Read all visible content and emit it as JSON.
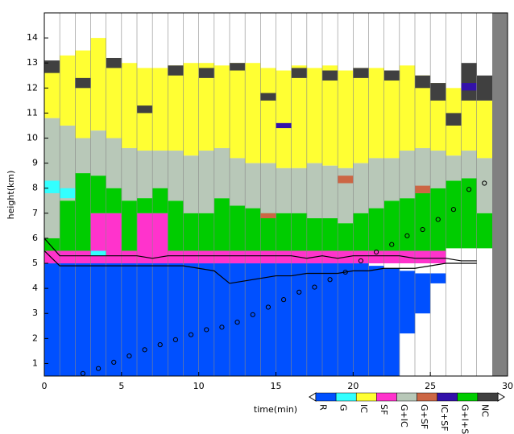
{
  "chart_data": {
    "type": "range",
    "xlabel": "time(min)",
    "ylabel": "height(km)",
    "xlim": [
      0,
      30
    ],
    "xticks": [
      0,
      5,
      10,
      15,
      20,
      25,
      30
    ],
    "ylim": [
      0.5,
      15
    ],
    "yticks": [
      1,
      2,
      3,
      4,
      5,
      6,
      7,
      8,
      9,
      10,
      11,
      12,
      13,
      14
    ],
    "x": [
      0,
      1,
      2,
      3,
      4,
      5,
      6,
      7,
      8,
      9,
      10,
      11,
      12,
      13,
      14,
      15,
      16,
      17,
      18,
      19,
      20,
      21,
      22,
      23,
      24,
      25,
      26,
      27,
      28
    ],
    "series": [
      {
        "name": "R",
        "color": "#0050ff",
        "values": [
          [
            0.5,
            5.0
          ],
          [
            0.5,
            5.0
          ],
          [
            0.5,
            5.0
          ],
          [
            0.5,
            5.0
          ],
          [
            0.5,
            5.0
          ],
          [
            0.5,
            5.0
          ],
          [
            0.5,
            5.0
          ],
          [
            0.5,
            5.0
          ],
          [
            0.5,
            5.0
          ],
          [
            0.5,
            5.0
          ],
          [
            0.5,
            5.0
          ],
          [
            0.5,
            5.0
          ],
          [
            0.5,
            5.0
          ],
          [
            0.5,
            5.0
          ],
          [
            0.5,
            5.0
          ],
          [
            0.5,
            5.0
          ],
          [
            0.5,
            5.0
          ],
          [
            0.5,
            5.0
          ],
          [
            0.5,
            5.0
          ],
          [
            0.5,
            5.0
          ],
          [
            0.5,
            5.0
          ],
          [
            0.5,
            4.9
          ],
          [
            0.5,
            4.8
          ],
          [
            2.2,
            4.7
          ],
          [
            3.0,
            4.6
          ],
          [
            4.2,
            4.6
          ],
          null,
          null,
          null
        ]
      },
      {
        "name": "G",
        "color": "#33ffff",
        "values": [
          [
            7.8,
            8.3
          ],
          [
            7.6,
            8.0
          ],
          null,
          [
            5.3,
            5.5
          ],
          null,
          null,
          null,
          null,
          null,
          null,
          null,
          null,
          null,
          null,
          null,
          null,
          null,
          null,
          null,
          null,
          null,
          null,
          null,
          null,
          null,
          null,
          null,
          null,
          null
        ]
      },
      {
        "name": "IC",
        "color": "#ffff33",
        "values": [
          [
            10.8,
            13.0
          ],
          [
            10.5,
            13.3
          ],
          [
            10.0,
            13.5
          ],
          [
            10.3,
            14.0
          ],
          [
            10.0,
            13.2
          ],
          [
            9.6,
            13.0
          ],
          [
            9.5,
            12.8
          ],
          [
            9.5,
            12.8
          ],
          [
            9.5,
            12.9
          ],
          [
            9.3,
            13.0
          ],
          [
            9.5,
            13.0
          ],
          [
            9.6,
            12.9
          ],
          [
            9.2,
            13.0
          ],
          [
            9.0,
            13.0
          ],
          [
            9.0,
            12.8
          ],
          [
            8.8,
            12.7
          ],
          [
            8.8,
            12.9
          ],
          [
            9.0,
            12.8
          ],
          [
            8.9,
            12.9
          ],
          [
            8.8,
            12.7
          ],
          [
            9.0,
            12.8
          ],
          [
            9.2,
            12.8
          ],
          [
            9.2,
            12.7
          ],
          [
            9.5,
            12.9
          ],
          [
            9.6,
            12.5
          ],
          [
            9.5,
            12.2
          ],
          [
            9.3,
            12.0
          ],
          [
            9.5,
            12.0
          ],
          [
            9.2,
            11.5
          ]
        ]
      },
      {
        "name": "SF",
        "color": "#ff33cc",
        "values": [
          [
            5.0,
            5.5
          ],
          [
            5.0,
            5.5
          ],
          [
            5.0,
            5.5
          ],
          [
            5.0,
            7.0
          ],
          [
            5.0,
            7.0
          ],
          [
            5.0,
            5.5
          ],
          [
            5.0,
            7.0
          ],
          [
            5.0,
            7.0
          ],
          [
            5.0,
            5.5
          ],
          [
            5.0,
            5.5
          ],
          [
            5.0,
            5.5
          ],
          [
            5.0,
            5.5
          ],
          [
            5.0,
            5.5
          ],
          [
            5.0,
            5.5
          ],
          [
            5.0,
            5.5
          ],
          [
            5.0,
            5.5
          ],
          [
            5.0,
            5.5
          ],
          [
            5.0,
            5.5
          ],
          [
            5.0,
            5.5
          ],
          [
            5.0,
            5.5
          ],
          [
            5.0,
            5.5
          ],
          [
            5.0,
            5.5
          ],
          [
            5.0,
            5.5
          ],
          [
            5.0,
            5.5
          ],
          [
            5.0,
            5.5
          ],
          [
            5.0,
            5.5
          ],
          null,
          null,
          null
        ]
      },
      {
        "name": "G+IC",
        "color": "#b8c8b8",
        "values": [
          [
            6.0,
            10.8
          ],
          [
            7.5,
            10.5
          ],
          [
            8.6,
            10.0
          ],
          [
            8.5,
            10.3
          ],
          [
            8.0,
            10.0
          ],
          [
            7.5,
            9.6
          ],
          [
            7.6,
            9.5
          ],
          [
            8.0,
            9.5
          ],
          [
            7.5,
            9.5
          ],
          [
            7.0,
            9.3
          ],
          [
            7.0,
            9.5
          ],
          [
            7.6,
            9.6
          ],
          [
            7.3,
            9.2
          ],
          [
            7.2,
            9.0
          ],
          [
            7.0,
            9.0
          ],
          [
            7.0,
            8.8
          ],
          [
            7.0,
            8.8
          ],
          [
            6.8,
            9.0
          ],
          [
            6.8,
            8.9
          ],
          [
            6.6,
            8.8
          ],
          [
            7.0,
            9.0
          ],
          [
            7.2,
            9.2
          ],
          [
            7.5,
            9.2
          ],
          [
            7.6,
            9.5
          ],
          [
            7.8,
            9.6
          ],
          [
            8.0,
            9.5
          ],
          [
            8.3,
            9.3
          ],
          [
            8.4,
            9.5
          ],
          [
            7.0,
            9.2
          ]
        ]
      },
      {
        "name": "G+SF",
        "color": "#cc6644",
        "values": [
          null,
          null,
          null,
          null,
          null,
          null,
          null,
          null,
          null,
          null,
          null,
          null,
          null,
          null,
          [
            6.8,
            7.0
          ],
          null,
          null,
          null,
          null,
          [
            8.2,
            8.5
          ],
          null,
          null,
          null,
          null,
          [
            7.8,
            8.1
          ],
          null,
          null,
          null,
          null
        ]
      },
      {
        "name": "IC+SF",
        "color": "#3311aa",
        "values": [
          null,
          null,
          null,
          null,
          null,
          null,
          null,
          null,
          null,
          null,
          null,
          null,
          null,
          null,
          null,
          [
            10.4,
            10.6
          ],
          null,
          null,
          null,
          null,
          null,
          null,
          null,
          null,
          null,
          null,
          null,
          [
            11.9,
            12.2
          ],
          null
        ]
      },
      {
        "name": "G+I+S",
        "color": "#00cc00",
        "values": [
          [
            5.5,
            6.0
          ],
          [
            5.5,
            7.5
          ],
          [
            5.5,
            8.6
          ],
          [
            7.0,
            8.5
          ],
          [
            7.0,
            8.0
          ],
          [
            5.5,
            7.5
          ],
          [
            7.0,
            7.6
          ],
          [
            7.0,
            8.0
          ],
          [
            5.5,
            7.5
          ],
          [
            5.5,
            7.0
          ],
          [
            5.5,
            7.0
          ],
          [
            5.5,
            7.6
          ],
          [
            5.5,
            7.3
          ],
          [
            5.5,
            7.2
          ],
          [
            5.5,
            7.0
          ],
          [
            5.5,
            7.0
          ],
          [
            5.5,
            7.0
          ],
          [
            5.5,
            6.8
          ],
          [
            5.5,
            6.8
          ],
          [
            5.5,
            6.6
          ],
          [
            5.5,
            7.0
          ],
          [
            5.5,
            7.2
          ],
          [
            5.5,
            7.5
          ],
          [
            5.5,
            7.6
          ],
          [
            5.5,
            7.8
          ],
          [
            5.5,
            8.0
          ],
          [
            5.6,
            8.3
          ],
          [
            5.6,
            8.4
          ],
          [
            5.6,
            7.0
          ]
        ]
      },
      {
        "name": "NC",
        "color": "#404040",
        "values": [
          [
            12.6,
            13.1
          ],
          null,
          [
            12.0,
            12.4
          ],
          null,
          [
            12.8,
            13.2
          ],
          null,
          [
            11.0,
            11.3
          ],
          null,
          [
            12.5,
            12.9
          ],
          null,
          [
            12.4,
            12.8
          ],
          null,
          [
            12.7,
            13.0
          ],
          null,
          [
            11.5,
            11.8
          ],
          null,
          [
            12.4,
            12.8
          ],
          null,
          [
            12.3,
            12.7
          ],
          null,
          [
            12.4,
            12.8
          ],
          null,
          [
            12.3,
            12.7
          ],
          null,
          [
            12.0,
            12.5
          ],
          [
            11.5,
            12.2
          ],
          [
            10.5,
            11.0
          ],
          [
            11.5,
            13.0
          ],
          [
            11.5,
            12.5
          ]
        ]
      }
    ],
    "lines": [
      {
        "color": "#000000",
        "values": [
          6.0,
          5.3,
          5.3,
          5.3,
          5.3,
          5.3,
          5.3,
          5.2,
          5.3,
          5.3,
          5.3,
          5.3,
          5.3,
          5.3,
          5.3,
          5.3,
          5.3,
          5.2,
          5.3,
          5.2,
          5.3,
          5.3,
          5.3,
          5.3,
          5.2,
          5.2,
          5.2,
          5.1,
          5.1
        ]
      },
      {
        "color": "#000000",
        "values": [
          5.5,
          4.9,
          4.9,
          4.9,
          4.9,
          4.9,
          4.9,
          4.9,
          4.9,
          4.9,
          4.8,
          4.7,
          4.2,
          4.3,
          4.4,
          4.5,
          4.5,
          4.6,
          4.6,
          4.6,
          4.7,
          4.7,
          4.8,
          4.8,
          4.8,
          4.9,
          5.0,
          5.0,
          5.0
        ]
      }
    ],
    "points": {
      "color": "#000000",
      "x": [
        2.5,
        3.5,
        4.5,
        5.5,
        6.5,
        7.5,
        8.5,
        9.5,
        10.5,
        11.5,
        12.5,
        13.5,
        14.5,
        15.5,
        16.5,
        17.5,
        18.5,
        19.5,
        20.5,
        21.5,
        22.5,
        23.5,
        24.5,
        25.5,
        26.5,
        27.5,
        28.5
      ],
      "y": [
        0.6,
        0.8,
        1.05,
        1.3,
        1.55,
        1.75,
        1.95,
        2.15,
        2.35,
        2.45,
        2.65,
        2.95,
        3.25,
        3.55,
        3.85,
        4.05,
        4.35,
        4.65,
        5.1,
        5.45,
        5.75,
        6.1,
        6.35,
        6.75,
        7.15,
        7.95,
        8.2
      ]
    }
  }
}
